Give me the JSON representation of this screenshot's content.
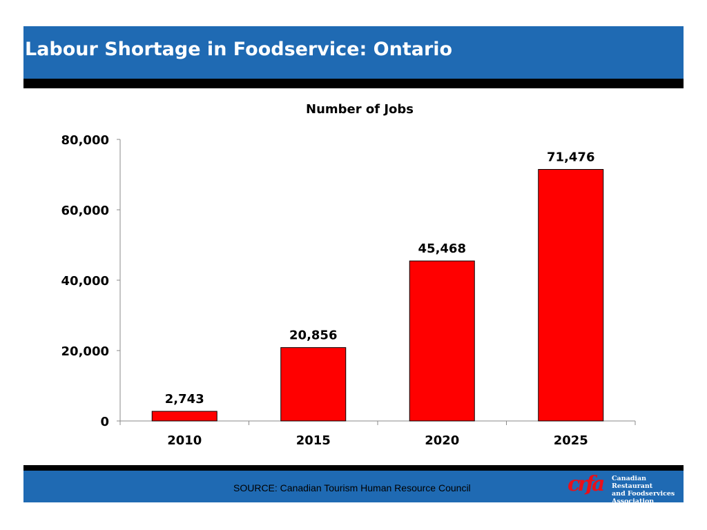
{
  "header": {
    "title": "Labour Shortage in Foodservice:  Ontario"
  },
  "footer": {
    "source": "SOURCE:  Canadian Tourism Human Resource Council",
    "logo": {
      "mark": "crfa",
      "text": [
        "Canadian Restaurant",
        "and Foodservices",
        "Association"
      ]
    }
  },
  "colors": {
    "header": "#1f6ab3",
    "bar": "#ff0000"
  },
  "chart_data": {
    "type": "bar",
    "title": "Number of Jobs",
    "categories": [
      "2010",
      "2015",
      "2020",
      "2025"
    ],
    "values": [
      2743,
      20856,
      45468,
      71476
    ],
    "data_labels": [
      "2,743",
      "20,856",
      "45,468",
      "71,476"
    ],
    "ylim": [
      0,
      80000
    ],
    "yticks": [
      0,
      20000,
      40000,
      60000,
      80000
    ],
    "ytick_labels": [
      "0",
      "20,000",
      "40,000",
      "60,000",
      "80,000"
    ],
    "grid": false,
    "legend": "none"
  }
}
